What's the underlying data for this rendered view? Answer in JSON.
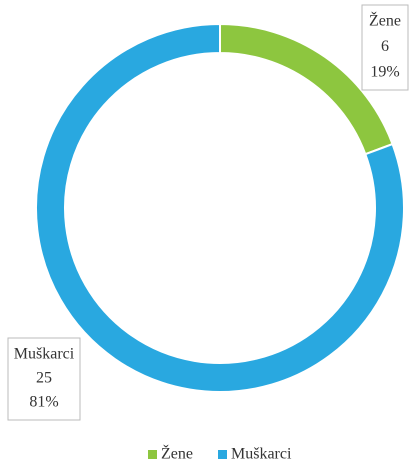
{
  "chart_data": {
    "type": "donut",
    "categories": [
      "Žene",
      "Muškarci"
    ],
    "values": [
      6,
      25
    ],
    "percent_labels": [
      "19%",
      "81%"
    ],
    "colors": [
      "#8dc63f",
      "#29a8e0"
    ],
    "legend": "bottom"
  }
}
